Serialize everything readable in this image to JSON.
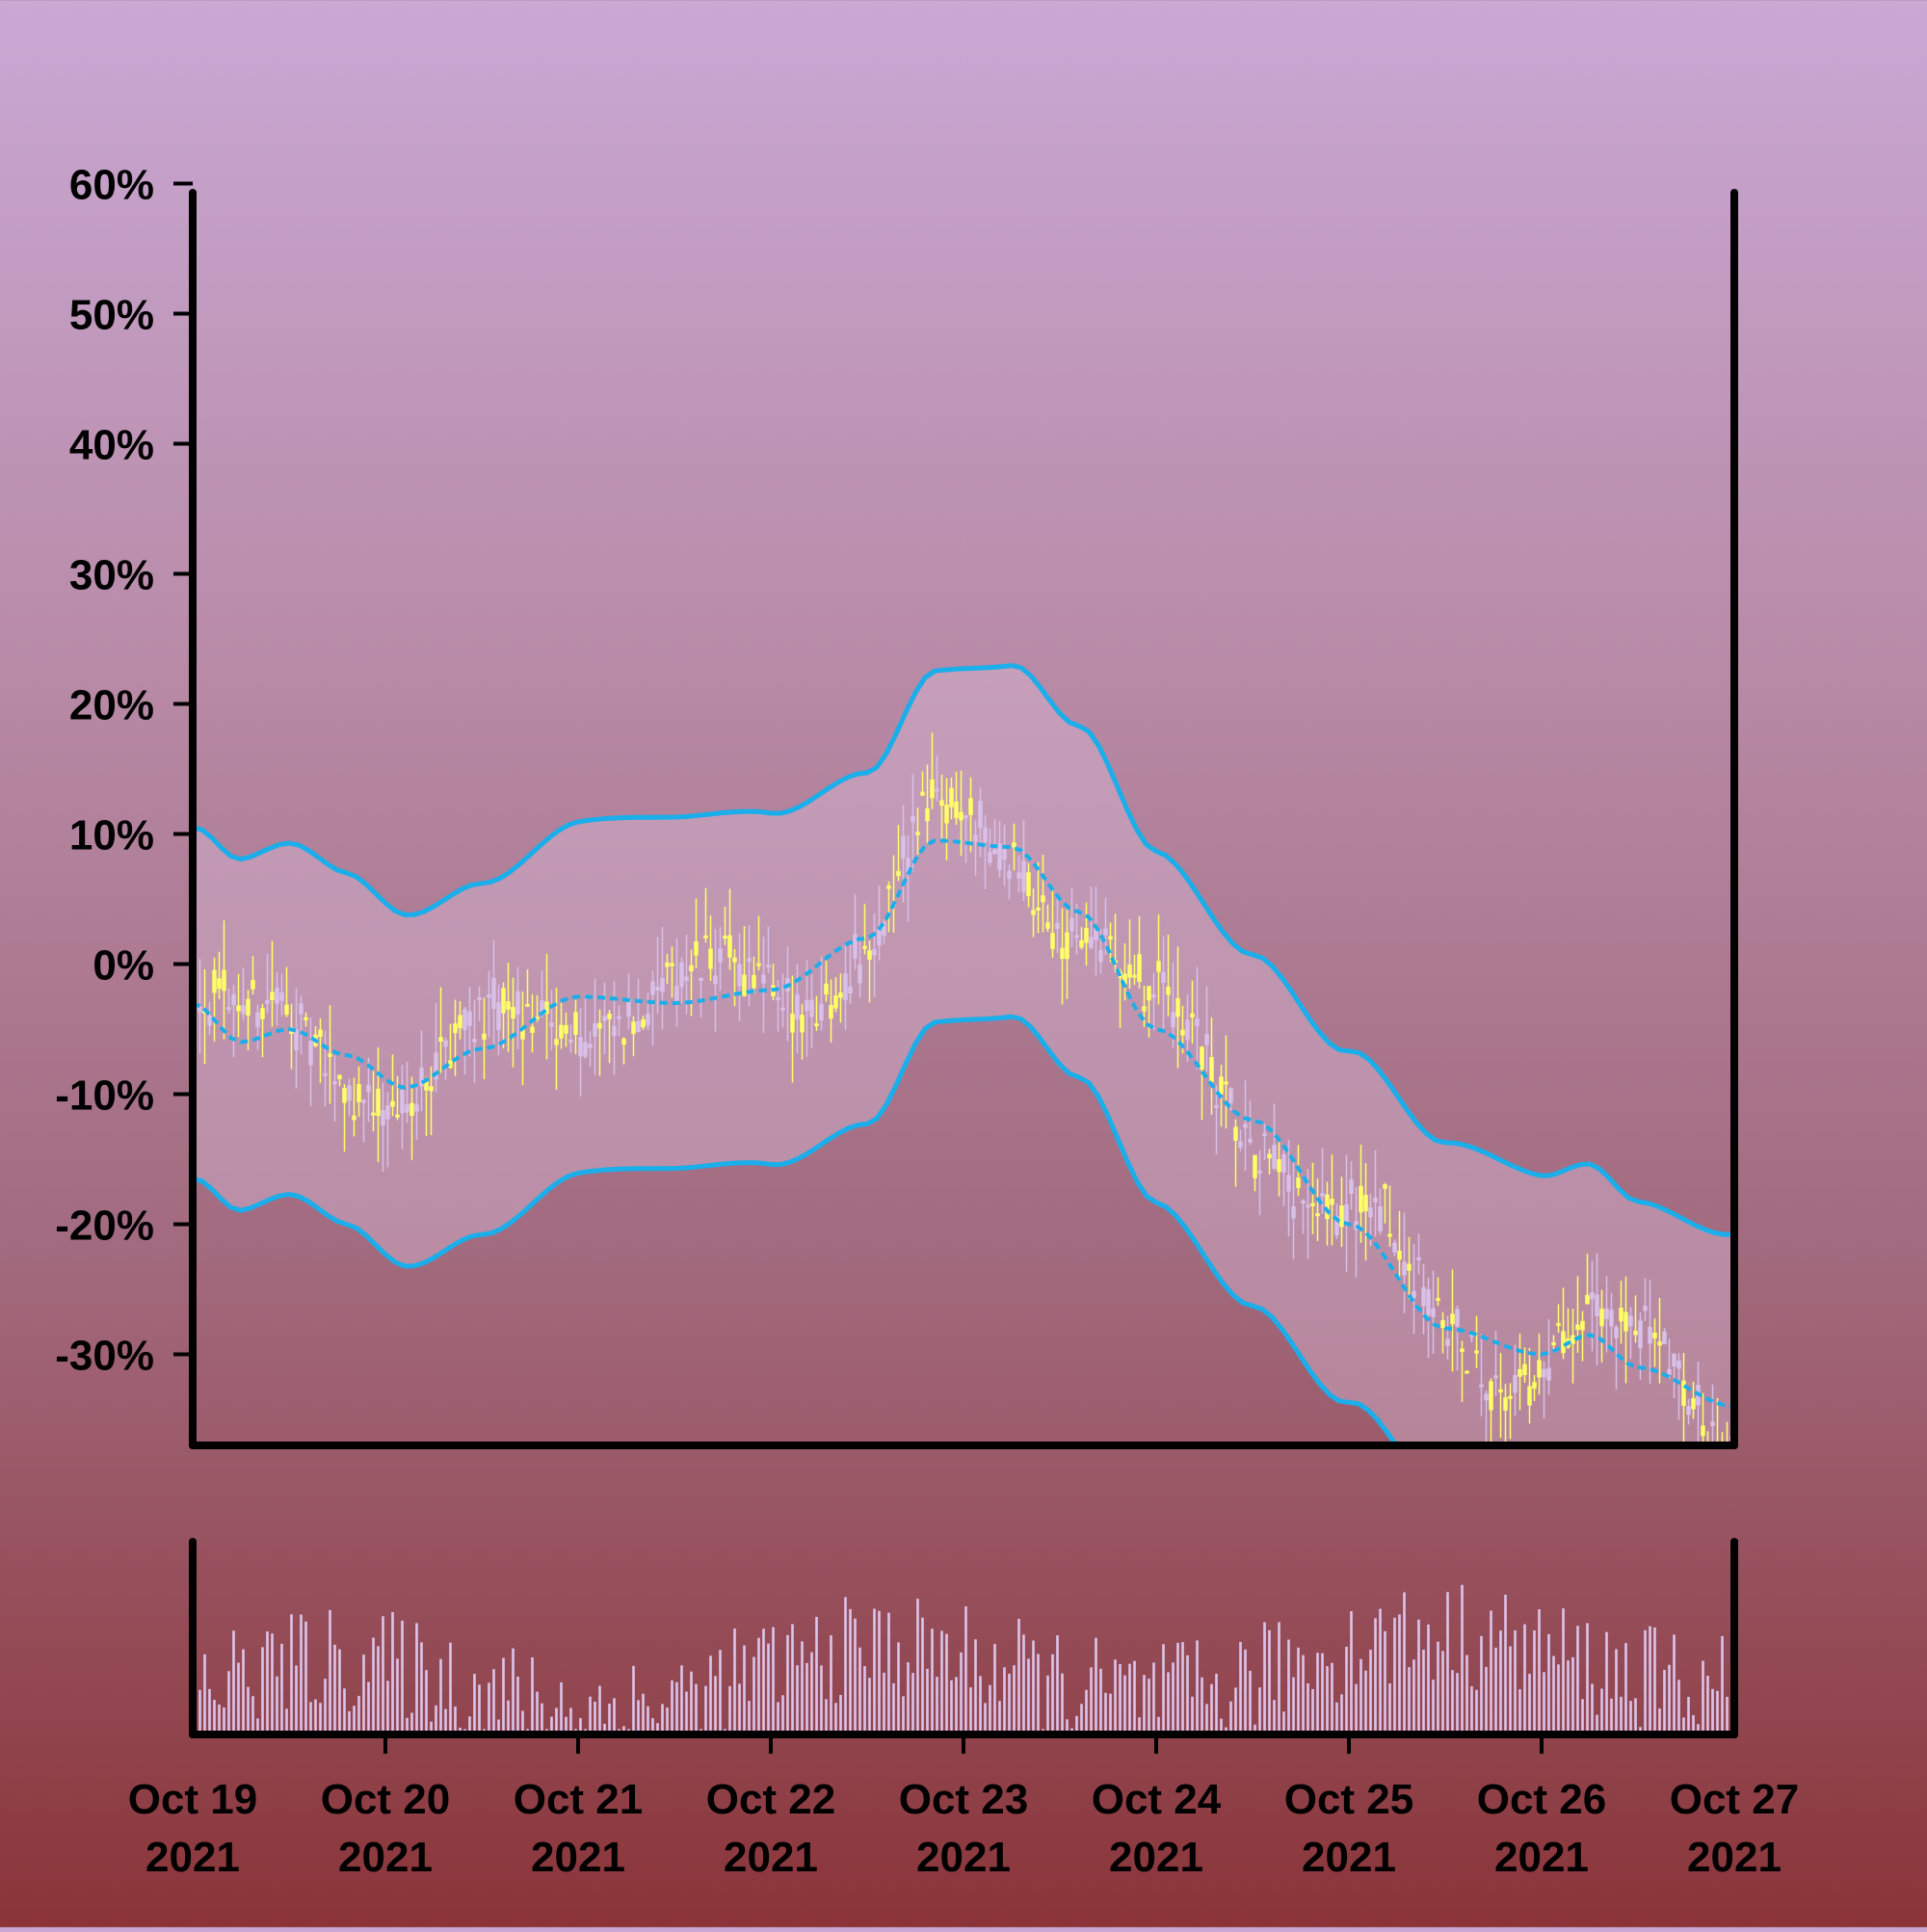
{
  "chart_data": {
    "type": "candlestick",
    "title": "",
    "xlabel": "",
    "ylabel": "",
    "y_tick_labels": [
      "60%",
      "50%",
      "40%",
      "30%",
      "20%",
      "10%",
      "0%",
      "-10%",
      "-20%",
      "-30%"
    ],
    "y_ticks": [
      60,
      50,
      40,
      30,
      20,
      10,
      0,
      -10,
      -20,
      -30
    ],
    "ylim": [
      -37,
      63
    ],
    "x_ticks": [
      {
        "line1": "Oct 19",
        "line2": "2021"
      },
      {
        "line1": "Oct 20",
        "line2": "2021"
      },
      {
        "line1": "Oct 21",
        "line2": "2021"
      },
      {
        "line1": "Oct 22",
        "line2": "2021"
      },
      {
        "line1": "Oct 23",
        "line2": "2021"
      },
      {
        "line1": "Oct 24",
        "line2": "2021"
      },
      {
        "line1": "Oct 25",
        "line2": "2021"
      },
      {
        "line1": "Oct 26",
        "line2": "2021"
      },
      {
        "line1": "Oct 27",
        "line2": "2021"
      }
    ],
    "x_range_days": [
      0,
      8
    ],
    "grid": false,
    "legend": "none",
    "moving_average_trend": {
      "description_points_x_days": [
        0,
        0.25,
        0.5,
        0.8,
        1.1,
        1.5,
        2.0,
        2.5,
        3.0,
        3.5,
        3.85,
        4.25,
        4.6,
        5.0,
        5.5,
        6.0,
        6.5,
        7.0,
        7.25,
        7.5,
        8.0
      ],
      "ma_percent": [
        -3,
        -6,
        -5,
        -7,
        -9.5,
        -6.5,
        -2.5,
        -3,
        -2,
        2,
        9.5,
        9,
        4,
        -5,
        -12,
        -20,
        -28,
        -30,
        -28.5,
        -31,
        -34
      ]
    },
    "band_width_percent": 13.5,
    "candles_per_day": 40,
    "volume_scale_max": 100,
    "colors": {
      "bg_top": "#c9a8d4",
      "bg_bottom": "#8a3438",
      "band_line": "#1aaeea",
      "band_fill": "#d8b8d4",
      "candle_up": "#ffff66",
      "candle_down": "#d8c0e8",
      "volume_bar": "#dcc4ea",
      "axis": "#000000"
    }
  }
}
